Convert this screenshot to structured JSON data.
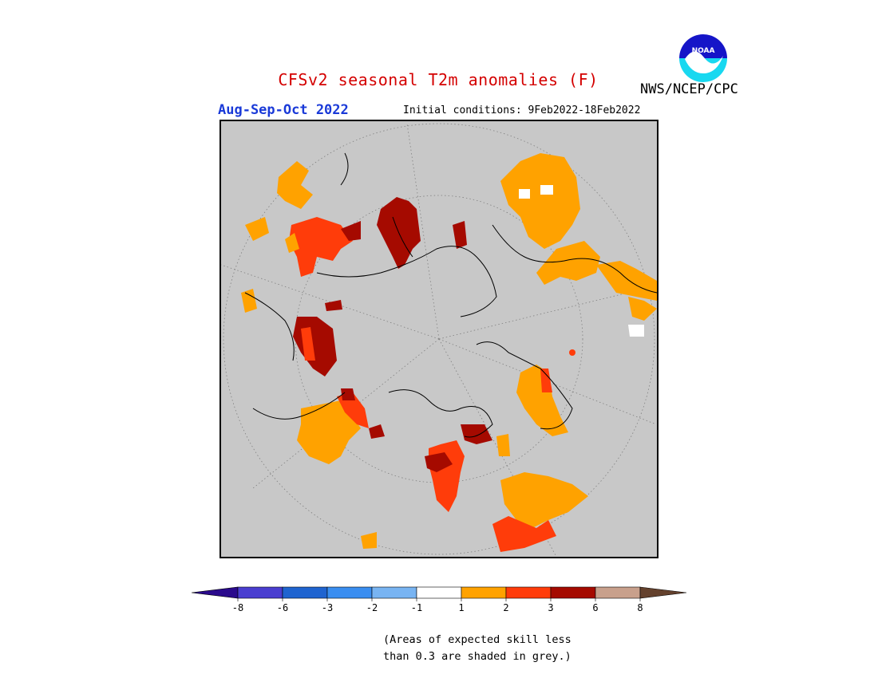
{
  "header": {
    "title": "CFSv2 seasonal T2m anomalies (F)",
    "agency": "NWS/NCEP/CPC",
    "season": "Aug-Sep-Oct 2022",
    "initial_conditions": "Initial conditions: 9Feb2022-18Feb2022",
    "logo_text": "NOAA"
  },
  "colors": {
    "title": "#d40000",
    "season": "#1a3ad8",
    "background_grey": "#c8c8c8"
  },
  "legend": {
    "units": "F",
    "tick_labels": [
      "-8",
      "-6",
      "-3",
      "-2",
      "-1",
      "1",
      "2",
      "3",
      "6",
      "8"
    ],
    "bins": [
      {
        "range": "< -8",
        "color": "#2a0a8c"
      },
      {
        "range": "-8 to -6",
        "color": "#4a3ed0"
      },
      {
        "range": "-6 to -3",
        "color": "#1f64d0"
      },
      {
        "range": "-3 to -2",
        "color": "#3a8ef0"
      },
      {
        "range": "-2 to -1",
        "color": "#78b4f2"
      },
      {
        "range": "-1 to 1",
        "color": "#ffffff"
      },
      {
        "range": "1 to 2",
        "color": "#ffa200"
      },
      {
        "range": "2 to 3",
        "color": "#ff3c0a"
      },
      {
        "range": "3 to 6",
        "color": "#a50a00"
      },
      {
        "range": "6 to 8",
        "color": "#c8a08c"
      },
      {
        "range": "> 8",
        "color": "#64412d"
      }
    ]
  },
  "footnote": {
    "line1": "(Areas of expected skill less",
    "line2": "than 0.3 are shaded in grey.)"
  },
  "map": {
    "projection": "north polar stereographic",
    "background": "grey (low skill)"
  }
}
